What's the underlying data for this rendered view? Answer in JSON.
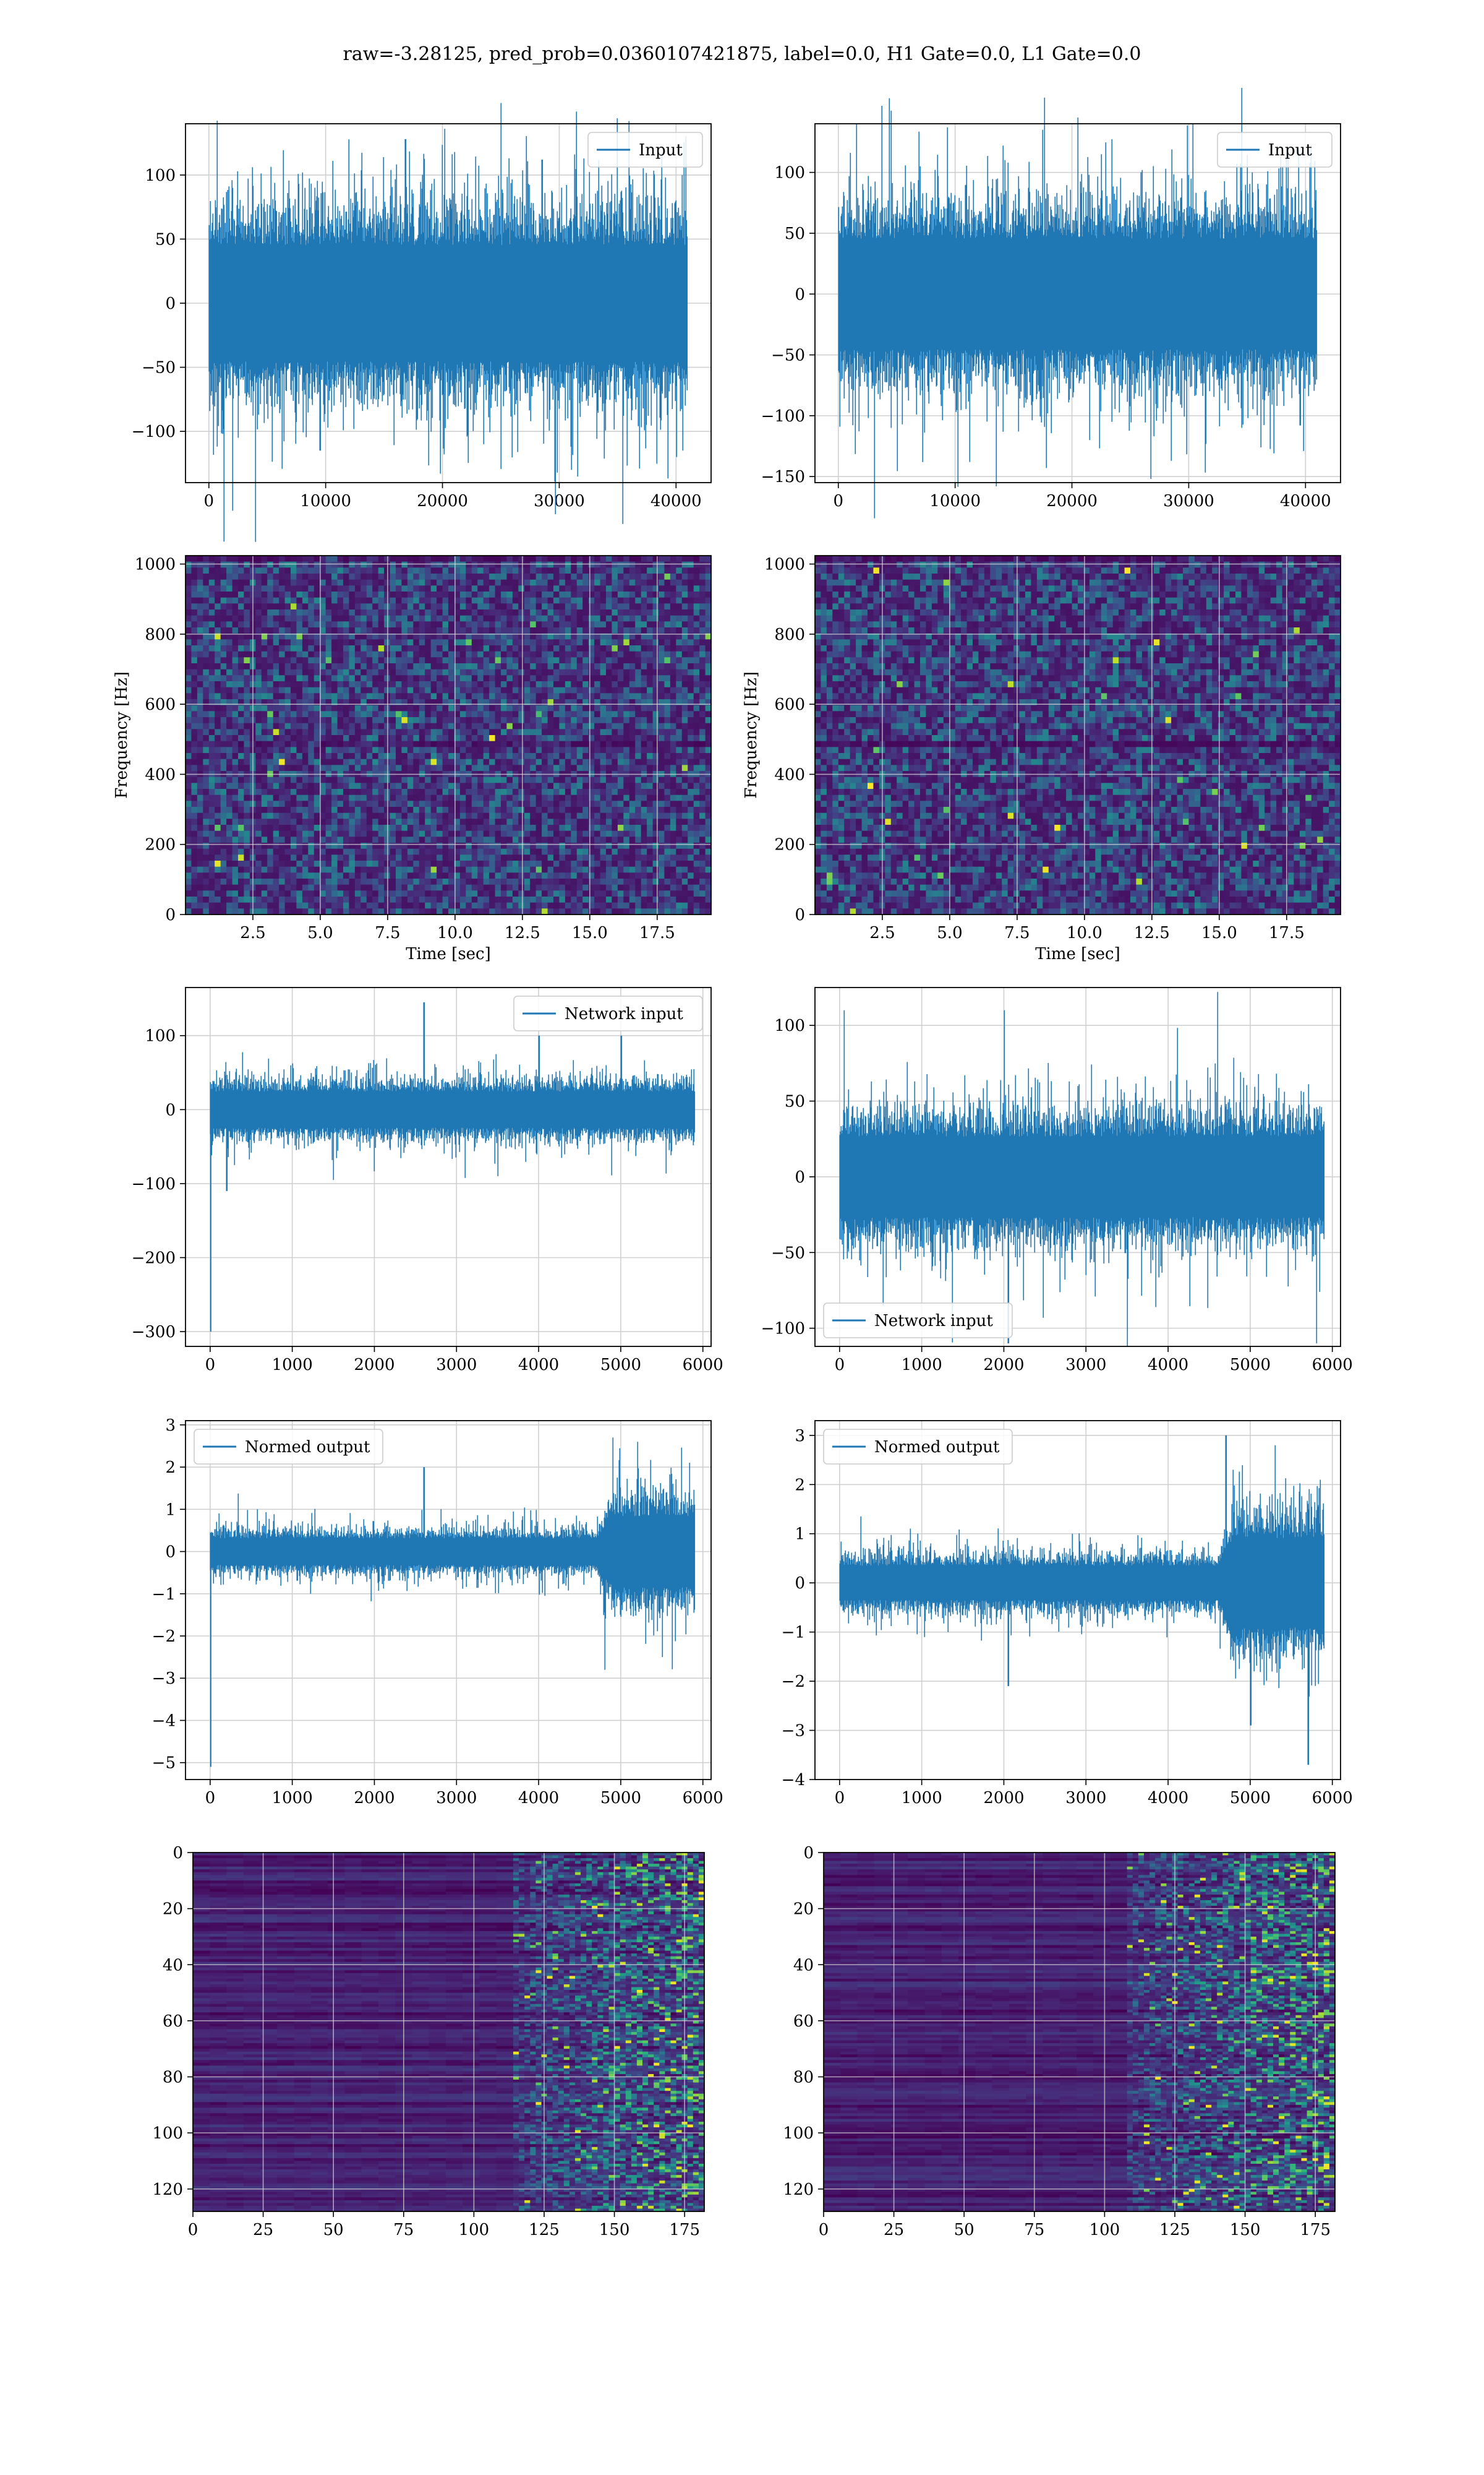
{
  "figure": {
    "title": "raw=-3.28125, pred_prob=0.0360107421875, label=0.0, H1 Gate=0.0, L1 Gate=0.0",
    "series_color": "#1f77b4",
    "grid_color": "#d0d0d0"
  },
  "chart_data": [
    {
      "id": "input-left",
      "type": "line",
      "legend": "Input",
      "legend_loc": "upper right",
      "xlim": [
        -2000,
        43000
      ],
      "ylim": [
        -140,
        140
      ],
      "xticks": [
        0,
        10000,
        20000,
        30000,
        40000
      ],
      "yticks": [
        -100,
        -50,
        0,
        50,
        100
      ],
      "n_points": 40960,
      "band": 65,
      "peaks": [
        [
          2000,
          90
        ],
        [
          8000,
          102
        ],
        [
          16800,
          128
        ],
        [
          21000,
          118
        ],
        [
          28500,
          112
        ],
        [
          40500,
          100
        ]
      ],
      "troughs": [
        [
          2500,
          -105
        ],
        [
          9500,
          -115
        ],
        [
          19800,
          -133
        ],
        [
          23500,
          -110
        ],
        [
          31000,
          -130
        ],
        [
          40000,
          -120
        ]
      ]
    },
    {
      "id": "input-right",
      "type": "line",
      "legend": "Input",
      "legend_loc": "upper right",
      "xlim": [
        -2000,
        43000
      ],
      "ylim": [
        -155,
        140
      ],
      "xticks": [
        0,
        10000,
        20000,
        30000,
        40000
      ],
      "yticks": [
        -150,
        -100,
        -50,
        0,
        50,
        100
      ],
      "n_points": 40960,
      "band": 65,
      "peaks": [
        [
          7000,
          105
        ],
        [
          14500,
          108
        ],
        [
          22500,
          115
        ],
        [
          28000,
          103
        ],
        [
          38000,
          105
        ]
      ],
      "troughs": [
        [
          4500,
          -110
        ],
        [
          17800,
          -143
        ],
        [
          21500,
          -120
        ],
        [
          34500,
          -110
        ],
        [
          39500,
          -108
        ]
      ]
    },
    {
      "id": "spectrogram-left",
      "type": "heatmap",
      "xlabel": "Time [sec]",
      "ylabel": "Frequency [Hz]",
      "xlim": [
        0,
        19.5
      ],
      "ylim": [
        0,
        1024
      ],
      "xticks": [
        2.5,
        5.0,
        7.5,
        10.0,
        12.5,
        15.0,
        17.5
      ],
      "yticks": [
        0,
        200,
        400,
        600,
        800,
        1000
      ],
      "colormap": "viridis",
      "noise_level": "low",
      "dark_band_hz": 500
    },
    {
      "id": "spectrogram-right",
      "type": "heatmap",
      "xlabel": "Time [sec]",
      "ylabel": "Frequency [Hz]",
      "xlim": [
        0,
        19.5
      ],
      "ylim": [
        0,
        1024
      ],
      "xticks": [
        2.5,
        5.0,
        7.5,
        10.0,
        12.5,
        15.0,
        17.5
      ],
      "yticks": [
        0,
        200,
        400,
        600,
        800,
        1000
      ],
      "colormap": "viridis",
      "noise_level": "low",
      "dark_band_hz": 500
    },
    {
      "id": "network-input-left",
      "type": "line",
      "legend": "Network input",
      "legend_loc": "upper right",
      "xlim": [
        -300,
        6100
      ],
      "ylim": [
        -320,
        165
      ],
      "xticks": [
        0,
        1000,
        2000,
        3000,
        4000,
        5000,
        6000
      ],
      "yticks": [
        -300,
        -200,
        -100,
        0,
        100
      ],
      "n_points": 5900,
      "band": 35,
      "initial_spike": -300,
      "peaks": [
        [
          2600,
          145
        ],
        [
          4000,
          100
        ],
        [
          5000,
          100
        ]
      ],
      "troughs": [
        [
          200,
          -110
        ],
        [
          1500,
          -95
        ],
        [
          3500,
          -90
        ]
      ]
    },
    {
      "id": "network-input-right",
      "type": "line",
      "legend": "Network input",
      "legend_loc": "lower left",
      "xlim": [
        -300,
        6100
      ],
      "ylim": [
        -112,
        125
      ],
      "xticks": [
        0,
        1000,
        2000,
        3000,
        4000,
        5000,
        6000
      ],
      "yticks": [
        -100,
        -50,
        0,
        50,
        100
      ],
      "n_points": 5900,
      "band": 38,
      "peaks": [
        [
          50,
          110
        ],
        [
          2000,
          110
        ],
        [
          4600,
          122
        ]
      ],
      "troughs": [
        [
          2050,
          -110
        ],
        [
          3500,
          -112
        ],
        [
          5800,
          -110
        ]
      ]
    },
    {
      "id": "normed-output-left",
      "type": "line",
      "legend": "Normed output",
      "legend_loc": "upper left",
      "xlim": [
        -300,
        6100
      ],
      "ylim": [
        -5.4,
        3.1
      ],
      "xticks": [
        0,
        1000,
        2000,
        3000,
        4000,
        5000,
        6000
      ],
      "yticks": [
        -5,
        -4,
        -3,
        -2,
        -1,
        0,
        1,
        2,
        3
      ],
      "n_points": 5900,
      "band": 0.45,
      "late_band": 1.2,
      "late_start": 4700,
      "initial_spike": -5.1,
      "peaks": [
        [
          2600,
          2.0
        ],
        [
          4900,
          2.7
        ],
        [
          5200,
          2.6
        ]
      ],
      "troughs": [
        [
          4800,
          -2.8
        ],
        [
          5500,
          -2.5
        ]
      ]
    },
    {
      "id": "normed-output-right",
      "type": "line",
      "legend": "Normed output",
      "legend_loc": "upper left",
      "xlim": [
        -300,
        6100
      ],
      "ylim": [
        -4.0,
        3.3
      ],
      "xticks": [
        0,
        1000,
        2000,
        3000,
        4000,
        5000,
        6000
      ],
      "yticks": [
        -4,
        -3,
        -2,
        -1,
        0,
        1,
        2,
        3
      ],
      "n_points": 5900,
      "band": 0.5,
      "late_band": 1.3,
      "late_start": 4600,
      "peaks": [
        [
          4700,
          3.0
        ],
        [
          5300,
          2.8
        ]
      ],
      "troughs": [
        [
          2050,
          -2.1
        ],
        [
          5000,
          -2.9
        ],
        [
          5700,
          -3.7
        ]
      ]
    },
    {
      "id": "activation-map-left",
      "type": "heatmap",
      "xlim": [
        0,
        182
      ],
      "ylim": [
        128,
        0
      ],
      "xticks": [
        0,
        25,
        50,
        75,
        100,
        125,
        150,
        175
      ],
      "yticks": [
        0,
        20,
        40,
        60,
        80,
        100,
        120
      ],
      "colormap": "viridis",
      "rows": 128,
      "cols": 182,
      "active_from_col": 110
    },
    {
      "id": "activation-map-right",
      "type": "heatmap",
      "xlim": [
        0,
        182
      ],
      "ylim": [
        128,
        0
      ],
      "xticks": [
        0,
        25,
        50,
        75,
        100,
        125,
        150,
        175
      ],
      "yticks": [
        0,
        20,
        40,
        60,
        80,
        100,
        120
      ],
      "colormap": "viridis",
      "rows": 128,
      "cols": 182,
      "active_from_col": 105
    }
  ]
}
